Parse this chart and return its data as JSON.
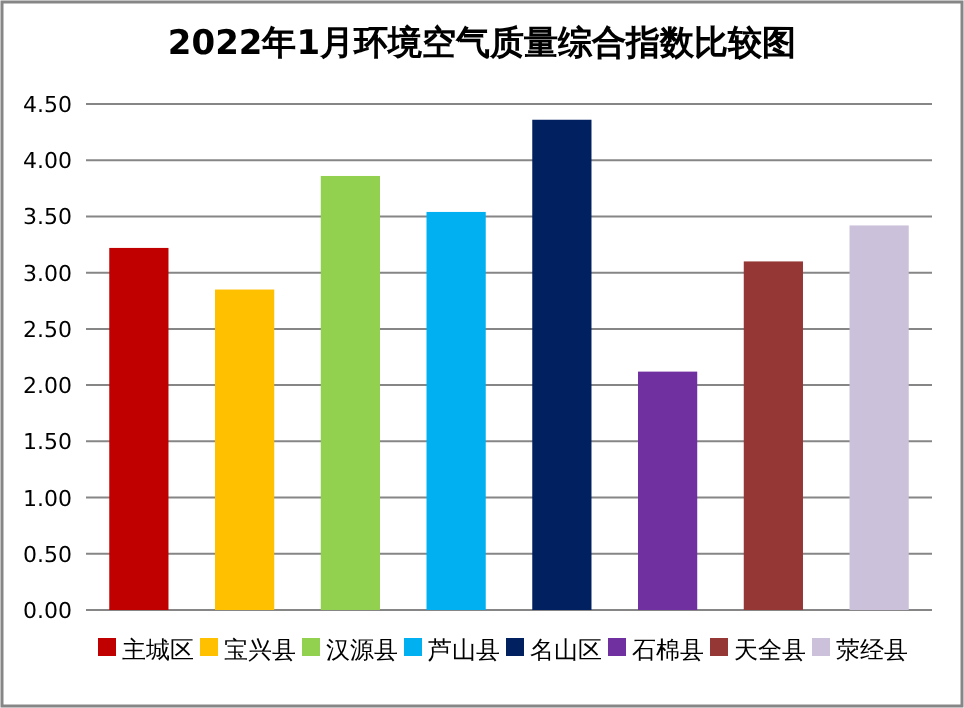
{
  "chart_data": {
    "type": "bar",
    "title": "2022年1月环境空气质量综合指数比较图",
    "categories": [
      null
    ],
    "series": [
      {
        "name": "主城区",
        "color": "#c00000",
        "values": [
          3.22
        ]
      },
      {
        "name": "宝兴县",
        "color": "#ffc000",
        "values": [
          2.85
        ]
      },
      {
        "name": "汉源县",
        "color": "#92d050",
        "values": [
          3.86
        ]
      },
      {
        "name": "芦山县",
        "color": "#00b0f0",
        "values": [
          3.54
        ]
      },
      {
        "name": "名山区",
        "color": "#002060",
        "values": [
          4.36
        ]
      },
      {
        "name": "石棉县",
        "color": "#7030a0",
        "values": [
          2.12
        ]
      },
      {
        "name": "天全县",
        "color": "#953735",
        "values": [
          3.1
        ]
      },
      {
        "name": "荥经县",
        "color": "#ccc1da",
        "values": [
          3.42
        ]
      }
    ],
    "ylim": [
      0,
      4.5
    ],
    "yticks": [
      {
        "value": 0,
        "label": "0.00"
      },
      {
        "value": 0.5,
        "label": "0.50"
      },
      {
        "value": 1,
        "label": "1.00"
      },
      {
        "value": 1.5,
        "label": "1.50"
      },
      {
        "value": 2,
        "label": "2.00"
      },
      {
        "value": 2.5,
        "label": "2.50"
      },
      {
        "value": 3,
        "label": "3.00"
      },
      {
        "value": 3.5,
        "label": "3.50"
      },
      {
        "value": 4,
        "label": "4.00"
      },
      {
        "value": 4.5,
        "label": "4.50"
      }
    ],
    "grid": "y",
    "legend": "bottom",
    "tick_labels": "y"
  }
}
